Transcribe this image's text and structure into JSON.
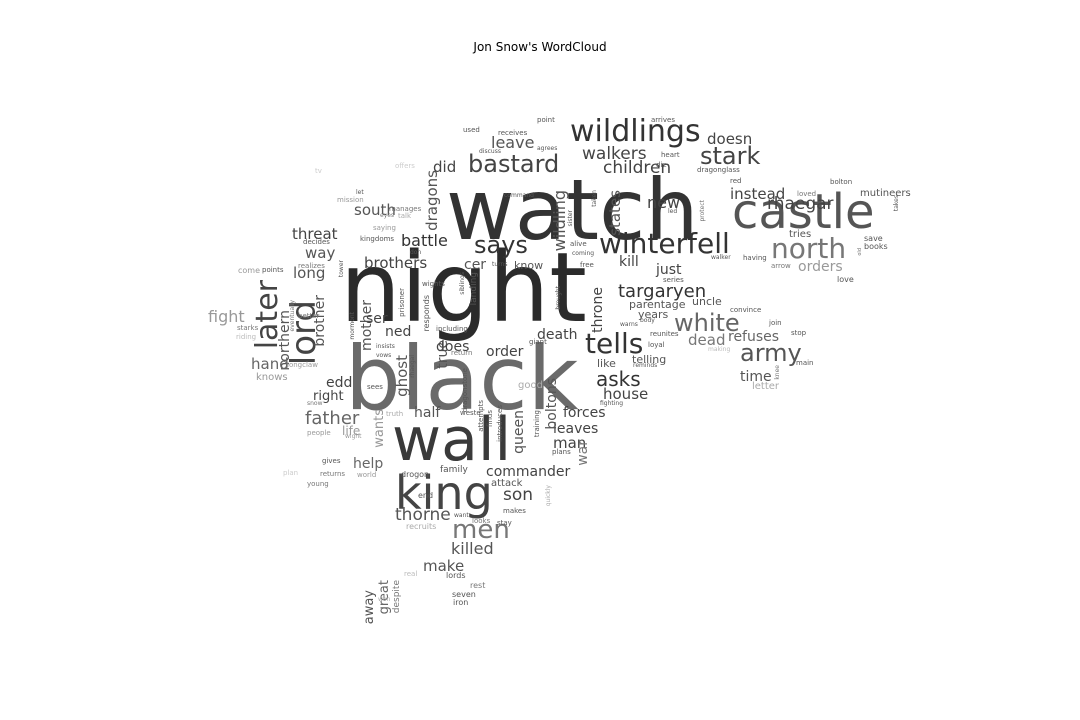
{
  "title": "Jon Snow's WordCloud",
  "words": [
    {
      "text": "watch",
      "color": "#333333"
    },
    {
      "text": "night",
      "color": "#2b2b2b"
    },
    {
      "text": "black",
      "color": "#6a6a6a"
    },
    {
      "text": "wall",
      "color": "#3a3a3a"
    },
    {
      "text": "castle",
      "color": "#555555"
    },
    {
      "text": "king",
      "color": "#444444"
    },
    {
      "text": "wildlings",
      "color": "#333333"
    },
    {
      "text": "winterfell",
      "color": "#333333"
    },
    {
      "text": "north",
      "color": "#777777"
    },
    {
      "text": "stark",
      "color": "#444444"
    },
    {
      "text": "bastard",
      "color": "#444444"
    },
    {
      "text": "says",
      "color": "#333333"
    },
    {
      "text": "tells",
      "color": "#333333"
    },
    {
      "text": "white",
      "color": "#666666"
    },
    {
      "text": "lord",
      "color": "#444444"
    },
    {
      "text": "later",
      "color": "#444444"
    },
    {
      "text": "men",
      "color": "#777777"
    },
    {
      "text": "army",
      "color": "#555555"
    },
    {
      "text": "asks",
      "color": "#333333"
    },
    {
      "text": "targaryen",
      "color": "#333333"
    },
    {
      "text": "children",
      "color": "#444444"
    },
    {
      "text": "walkers",
      "color": "#444444"
    },
    {
      "text": "rhaegar",
      "color": "#444444"
    },
    {
      "text": "father",
      "color": "#666666"
    },
    {
      "text": "thorne",
      "color": "#555555"
    },
    {
      "text": "son",
      "color": "#444444"
    },
    {
      "text": "killed",
      "color": "#555555"
    },
    {
      "text": "commander",
      "color": "#444444"
    },
    {
      "text": "leave",
      "color": "#555555"
    },
    {
      "text": "doesn",
      "color": "#444444"
    },
    {
      "text": "did",
      "color": "#444444"
    },
    {
      "text": "dragons",
      "color": "#555555"
    },
    {
      "text": "new",
      "color": "#444444"
    },
    {
      "text": "instead",
      "color": "#444444"
    },
    {
      "text": "threat",
      "color": "#444444"
    },
    {
      "text": "south",
      "color": "#555555"
    },
    {
      "text": "way",
      "color": "#555555"
    },
    {
      "text": "long",
      "color": "#555555"
    },
    {
      "text": "battle",
      "color": "#333333"
    },
    {
      "text": "brothers",
      "color": "#444444"
    },
    {
      "text": "wildling",
      "color": "#555555"
    },
    {
      "text": "states",
      "color": "#555555"
    },
    {
      "text": "kill",
      "color": "#444444"
    },
    {
      "text": "just",
      "color": "#444444"
    },
    {
      "text": "orders",
      "color": "#999999"
    },
    {
      "text": "fight",
      "color": "#999999"
    },
    {
      "text": "northern",
      "color": "#555555"
    },
    {
      "text": "brother",
      "color": "#555555"
    },
    {
      "text": "mother",
      "color": "#555555"
    },
    {
      "text": "ser",
      "color": "#444444"
    },
    {
      "text": "ned",
      "color": "#444444"
    },
    {
      "text": "ghost",
      "color": "#555555"
    },
    {
      "text": "true",
      "color": "#555555"
    },
    {
      "text": "does",
      "color": "#444444"
    },
    {
      "text": "death",
      "color": "#444444"
    },
    {
      "text": "throne",
      "color": "#444444"
    },
    {
      "text": "dead",
      "color": "#777777"
    },
    {
      "text": "refuses",
      "color": "#666666"
    },
    {
      "text": "hand",
      "color": "#666666"
    },
    {
      "text": "order",
      "color": "#444444"
    },
    {
      "text": "house",
      "color": "#444444"
    },
    {
      "text": "time",
      "color": "#555555"
    },
    {
      "text": "edd",
      "color": "#444444"
    },
    {
      "text": "right",
      "color": "#444444"
    },
    {
      "text": "half",
      "color": "#555555"
    },
    {
      "text": "forces",
      "color": "#444444"
    },
    {
      "text": "leaves",
      "color": "#444444"
    },
    {
      "text": "man",
      "color": "#444444"
    },
    {
      "text": "war",
      "color": "#777777"
    },
    {
      "text": "queen",
      "color": "#555555"
    },
    {
      "text": "boltons",
      "color": "#555555"
    },
    {
      "text": "help",
      "color": "#666666"
    },
    {
      "text": "wants",
      "color": "#999999"
    },
    {
      "text": "life",
      "color": "#999999"
    },
    {
      "text": "make",
      "color": "#555555"
    },
    {
      "text": "great",
      "color": "#666666"
    },
    {
      "text": "away",
      "color": "#555555"
    },
    {
      "text": "cer",
      "color": "#555555"
    },
    {
      "text": "know",
      "color": "#555555"
    },
    {
      "text": "uncle",
      "color": "#555555"
    },
    {
      "text": "parentage",
      "color": "#555555"
    },
    {
      "text": "years",
      "color": "#555555"
    },
    {
      "text": "like",
      "color": "#555555"
    },
    {
      "text": "telling",
      "color": "#555555"
    },
    {
      "text": "tries",
      "color": "#555555"
    },
    {
      "text": "mutineers",
      "color": "#555555"
    },
    {
      "text": "save",
      "color": "#555555"
    },
    {
      "text": "books",
      "color": "#555555"
    },
    {
      "text": "love",
      "color": "#555555"
    },
    {
      "text": "knows",
      "color": "#999999"
    },
    {
      "text": "letter",
      "color": "#aaaaaa"
    },
    {
      "text": "good",
      "color": "#aaaaaa"
    },
    {
      "text": "attack",
      "color": "#555555"
    },
    {
      "text": "end",
      "color": "#555555"
    },
    {
      "text": "family",
      "color": "#555555"
    },
    {
      "text": "drogon",
      "color": "#555555"
    },
    {
      "text": "lords",
      "color": "#555555"
    },
    {
      "text": "rest",
      "color": "#777777"
    },
    {
      "text": "seven",
      "color": "#555555"
    },
    {
      "text": "iron",
      "color": "#555555"
    },
    {
      "text": "despite",
      "color": "#777777"
    },
    {
      "text": "real",
      "color": "#bbbbbb"
    },
    {
      "text": "won",
      "color": "#aaaaaa"
    },
    {
      "text": "plan",
      "color": "#cccccc"
    },
    {
      "text": "young",
      "color": "#777777"
    },
    {
      "text": "gives",
      "color": "#555555"
    },
    {
      "text": "returns",
      "color": "#777777"
    },
    {
      "text": "world",
      "color": "#999999"
    },
    {
      "text": "people",
      "color": "#999999"
    },
    {
      "text": "wight",
      "color": "#999999"
    },
    {
      "text": "truth",
      "color": "#aaaaaa"
    },
    {
      "text": "sees",
      "color": "#555555"
    },
    {
      "text": "snow",
      "color": "#777777"
    },
    {
      "text": "longclaw",
      "color": "#999999"
    },
    {
      "text": "starks",
      "color": "#777777"
    },
    {
      "text": "riding",
      "color": "#bbbbbb"
    },
    {
      "text": "come",
      "color": "#999999"
    },
    {
      "text": "points",
      "color": "#555555"
    },
    {
      "text": "realizes",
      "color": "#777777"
    },
    {
      "text": "better",
      "color": "#777777"
    },
    {
      "text": "decides",
      "color": "#555555"
    },
    {
      "text": "kingdoms",
      "color": "#555555"
    },
    {
      "text": "saying",
      "color": "#999999"
    },
    {
      "text": "talk",
      "color": "#aaaaaa"
    },
    {
      "text": "manages",
      "color": "#777777"
    },
    {
      "text": "eyes",
      "color": "#777777"
    },
    {
      "text": "let",
      "color": "#555555"
    },
    {
      "text": "mission",
      "color": "#999999"
    },
    {
      "text": "offers",
      "color": "#cccccc"
    },
    {
      "text": "tv",
      "color": "#cccccc"
    },
    {
      "text": "used",
      "color": "#555555"
    },
    {
      "text": "receives",
      "color": "#555555"
    },
    {
      "text": "point",
      "color": "#555555"
    },
    {
      "text": "discuss",
      "color": "#555555"
    },
    {
      "text": "agrees",
      "color": "#555555"
    },
    {
      "text": "arrives",
      "color": "#555555"
    },
    {
      "text": "heart",
      "color": "#555555"
    },
    {
      "text": "die",
      "color": "#555555"
    },
    {
      "text": "dragonglass",
      "color": "#555555"
    },
    {
      "text": "red",
      "color": "#555555"
    },
    {
      "text": "loved",
      "color": "#777777"
    },
    {
      "text": "bolton",
      "color": "#555555"
    },
    {
      "text": "takes",
      "color": "#555555"
    },
    {
      "text": "command",
      "color": "#555555"
    },
    {
      "text": "led",
      "color": "#555555"
    },
    {
      "text": "protect",
      "color": "#777777"
    },
    {
      "text": "old",
      "color": "#777777"
    },
    {
      "text": "sister",
      "color": "#555555"
    },
    {
      "text": "taken",
      "color": "#555555"
    },
    {
      "text": "coming",
      "color": "#555555"
    },
    {
      "text": "alive",
      "color": "#555555"
    },
    {
      "text": "free",
      "color": "#555555"
    },
    {
      "text": "turns",
      "color": "#555555"
    },
    {
      "text": "don",
      "color": "#555555"
    },
    {
      "text": "series",
      "color": "#555555"
    },
    {
      "text": "walker",
      "color": "#555555"
    },
    {
      "text": "having",
      "color": "#555555"
    },
    {
      "text": "arrow",
      "color": "#777777"
    },
    {
      "text": "convince",
      "color": "#555555"
    },
    {
      "text": "join",
      "color": "#555555"
    },
    {
      "text": "stop",
      "color": "#555555"
    },
    {
      "text": "main",
      "color": "#555555"
    },
    {
      "text": "making",
      "color": "#bbbbbb"
    },
    {
      "text": "knee",
      "color": "#777777"
    },
    {
      "text": "reunites",
      "color": "#555555"
    },
    {
      "text": "body",
      "color": "#555555"
    },
    {
      "text": "loyal",
      "color": "#555555"
    },
    {
      "text": "warns",
      "color": "#555555"
    },
    {
      "text": "reminds",
      "color": "#555555"
    },
    {
      "text": "fighting",
      "color": "#555555"
    },
    {
      "text": "brought",
      "color": "#555555"
    },
    {
      "text": "siblings",
      "color": "#555555"
    },
    {
      "text": "landing",
      "color": "#555555"
    },
    {
      "text": "wights",
      "color": "#555555"
    },
    {
      "text": "prisoner",
      "color": "#555555"
    },
    {
      "text": "responds",
      "color": "#555555"
    },
    {
      "text": "including",
      "color": "#555555"
    },
    {
      "text": "giant",
      "color": "#555555"
    },
    {
      "text": "return",
      "color": "#777777"
    },
    {
      "text": "insists",
      "color": "#555555"
    },
    {
      "text": "vows",
      "color": "#555555"
    },
    {
      "text": "rhaegal",
      "color": "#555555"
    },
    {
      "text": "mormont",
      "color": "#555555"
    },
    {
      "text": "tower",
      "color": "#555555"
    },
    {
      "text": "eventually",
      "color": "#777777"
    },
    {
      "text": "dragonstone",
      "color": "#555555"
    },
    {
      "text": "attempts",
      "color": "#555555"
    },
    {
      "text": "finds",
      "color": "#555555"
    },
    {
      "text": "introduces",
      "color": "#555555"
    },
    {
      "text": "training",
      "color": "#555555"
    },
    {
      "text": "plans",
      "color": "#555555"
    },
    {
      "text": "weste",
      "color": "#555555"
    },
    {
      "text": "makes",
      "color": "#555555"
    },
    {
      "text": "want",
      "color": "#555555"
    },
    {
      "text": "looks",
      "color": "#777777"
    },
    {
      "text": "stay",
      "color": "#555555"
    },
    {
      "text": "recruits",
      "color": "#aaaaaa"
    },
    {
      "text": "quickly",
      "color": "#aaaaaa"
    }
  ]
}
